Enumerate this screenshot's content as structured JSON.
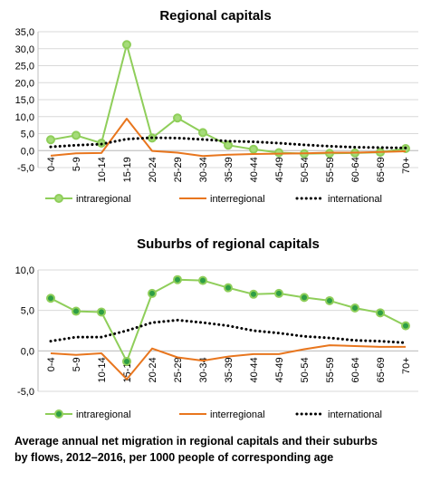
{
  "chart_data": [
    {
      "type": "line",
      "title": "Regional capitals",
      "categories": [
        "0-4",
        "5-9",
        "10-14",
        "15-19",
        "20-24",
        "25-29",
        "30-34",
        "35-39",
        "40-44",
        "45-49",
        "50-54",
        "55-59",
        "60-64",
        "65-69",
        "70+"
      ],
      "ylim": [
        -5,
        35
      ],
      "yticks": [
        -5,
        0,
        5,
        10,
        15,
        20,
        25,
        30,
        35
      ],
      "ytick_labels": [
        "-5,0",
        "0,0",
        "5,0",
        "10,0",
        "15,0",
        "20,0",
        "25,0",
        "30,0",
        "35,0"
      ],
      "grid": true,
      "legend_position": "bottom",
      "series": [
        {
          "name": "intraregional",
          "color": "#8fce5a",
          "style": "solid-markers",
          "values": [
            3.2,
            4.5,
            2.2,
            31.2,
            3.7,
            9.6,
            5.3,
            1.6,
            0.4,
            -0.6,
            -0.9,
            -0.8,
            -0.7,
            -0.5,
            0.6
          ]
        },
        {
          "name": "interregional",
          "color": "#e8761e",
          "style": "solid",
          "values": [
            -1.5,
            -0.8,
            -0.7,
            9.4,
            -0.1,
            -0.6,
            -1.6,
            -1.2,
            -1.0,
            -0.9,
            -0.8,
            -0.6,
            -0.6,
            -0.4,
            -0.2
          ]
        },
        {
          "name": "international",
          "color": "#000000",
          "style": "dotted",
          "values": [
            1.1,
            1.6,
            1.9,
            3.4,
            3.8,
            3.7,
            3.3,
            2.8,
            2.6,
            2.2,
            1.7,
            1.3,
            1.0,
            0.9,
            0.8
          ]
        }
      ]
    },
    {
      "type": "line",
      "title": "Suburbs of regional capitals",
      "categories": [
        "0-4",
        "5-9",
        "10-14",
        "15-19",
        "20-24",
        "25-29",
        "30-34",
        "35-39",
        "40-44",
        "45-49",
        "50-54",
        "55-59",
        "60-64",
        "65-69",
        "70+"
      ],
      "ylim": [
        -5,
        10
      ],
      "yticks": [
        -5,
        0,
        5,
        10
      ],
      "ytick_labels": [
        "-5,0",
        "0,0",
        "5,0",
        "10,0"
      ],
      "grid": true,
      "legend_position": "bottom",
      "series": [
        {
          "name": "intraregional",
          "color": "#8fce5a",
          "marker_fill": "#2e9e45",
          "style": "solid-markers",
          "values": [
            6.5,
            4.9,
            4.8,
            -1.3,
            7.1,
            8.8,
            8.7,
            7.8,
            7.0,
            7.1,
            6.6,
            6.2,
            5.3,
            4.7,
            3.1
          ]
        },
        {
          "name": "interregional",
          "color": "#e8761e",
          "style": "solid",
          "values": [
            -0.3,
            -0.5,
            -0.3,
            -3.5,
            0.3,
            -0.8,
            -1.2,
            -0.7,
            -0.4,
            -0.4,
            0.2,
            0.7,
            0.6,
            0.5,
            0.5
          ]
        },
        {
          "name": "international",
          "color": "#000000",
          "style": "dotted",
          "values": [
            1.2,
            1.7,
            1.7,
            2.5,
            3.5,
            3.8,
            3.5,
            3.1,
            2.5,
            2.2,
            1.8,
            1.6,
            1.3,
            1.2,
            1.0
          ]
        }
      ]
    }
  ],
  "caption": {
    "line1": "Average annual net migration in regional capitals and their suburbs",
    "line2": "by flows, 2012–2016,  per 1000  people of corresponding age"
  }
}
